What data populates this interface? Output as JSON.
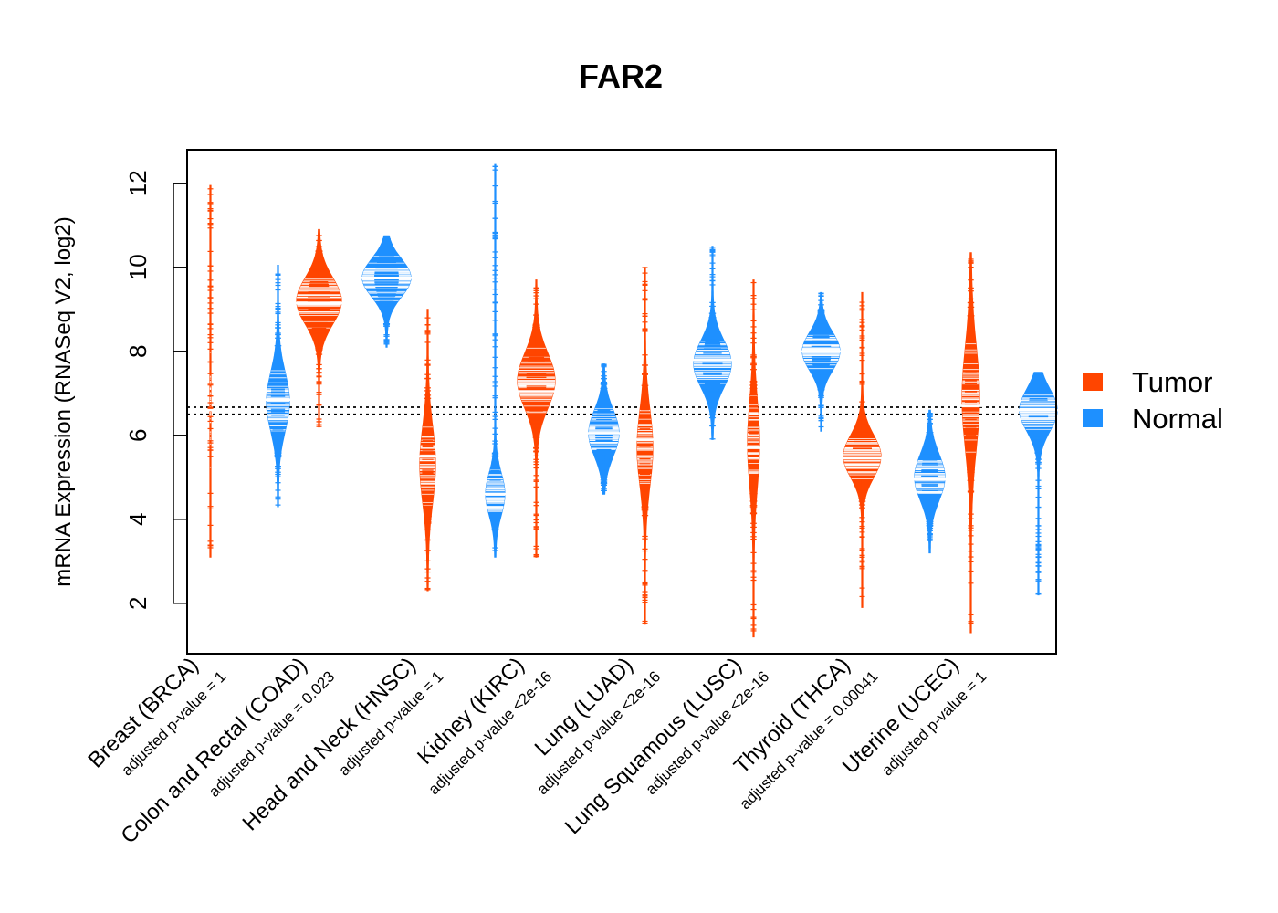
{
  "chart_data": {
    "type": "beanplot",
    "title": "FAR2",
    "ylabel": "mRNA Expression (RNASeq V2, log2)",
    "xlabel": "",
    "ylim": [
      0.8,
      12.8
    ],
    "yticks": [
      2,
      4,
      6,
      8,
      10,
      12
    ],
    "reference_lines": [
      6.5,
      6.67
    ],
    "legend": {
      "position": "right",
      "entries": [
        {
          "name": "Tumor",
          "color": "#FF4500"
        },
        {
          "name": "Normal",
          "color": "#1E90FF"
        }
      ]
    },
    "categories": [
      {
        "name": "Breast (BRCA)",
        "pvalue": "adjusted p-value = 1",
        "tumor": {
          "min": 3.1,
          "max": 11.95,
          "median": 6.6,
          "peak": 6.7,
          "spread": 1.2,
          "width": 0
        },
        "normal": {
          "min": 4.3,
          "max": 10.05,
          "median": 6.85,
          "peak": 6.8,
          "spread": 0.7,
          "width": 12
        }
      },
      {
        "name": "Colon and Rectal (COAD)",
        "pvalue": "adjusted p-value = 0.023",
        "tumor": {
          "min": 6.2,
          "max": 10.9,
          "median": 9.15,
          "peak": 9.2,
          "spread": 0.55,
          "width": 24
        },
        "normal": {
          "min": 8.1,
          "max": 10.75,
          "median": 9.75,
          "peak": 9.75,
          "spread": 0.45,
          "width": 26
        }
      },
      {
        "name": "Head and Neck (HNSC)",
        "pvalue": "adjusted p-value = 1",
        "tumor": {
          "min": 2.3,
          "max": 9.0,
          "median": 5.5,
          "peak": 5.3,
          "spread": 0.9,
          "width": 8
        },
        "normal": {
          "min": 3.1,
          "max": 12.45,
          "median": 4.6,
          "peak": 4.6,
          "spread": 0.5,
          "width": 10
        }
      },
      {
        "name": "Kidney (KIRC)",
        "pvalue": "adjusted p-value <2e-16",
        "tumor": {
          "min": 3.1,
          "max": 9.7,
          "median": 7.05,
          "peak": 7.3,
          "spread": 0.65,
          "width": 20
        },
        "normal": {
          "min": 4.6,
          "max": 7.7,
          "median": 6.05,
          "peak": 6.05,
          "spread": 0.55,
          "width": 16
        }
      },
      {
        "name": "Lung (LUAD)",
        "pvalue": "adjusted p-value <2e-16",
        "tumor": {
          "min": 1.5,
          "max": 10.0,
          "median": 5.9,
          "peak": 5.7,
          "spread": 0.9,
          "width": 8
        },
        "normal": {
          "min": 5.9,
          "max": 10.5,
          "median": 7.8,
          "peak": 7.7,
          "spread": 0.55,
          "width": 20
        }
      },
      {
        "name": "Lung Squamous (LUSC)",
        "pvalue": "adjusted p-value <2e-16",
        "tumor": {
          "min": 1.2,
          "max": 9.7,
          "median": 5.7,
          "peak": 5.8,
          "spread": 1.0,
          "width": 6
        },
        "normal": {
          "min": 6.1,
          "max": 9.4,
          "median": 8.0,
          "peak": 8.0,
          "spread": 0.45,
          "width": 20
        }
      },
      {
        "name": "Thyroid (THCA)",
        "pvalue": "adjusted p-value = 0.00041",
        "tumor": {
          "min": 1.9,
          "max": 9.4,
          "median": 5.45,
          "peak": 5.5,
          "spread": 0.5,
          "width": 20
        },
        "normal": {
          "min": 3.2,
          "max": 6.6,
          "median": 4.95,
          "peak": 5.0,
          "spread": 0.55,
          "width": 16
        }
      },
      {
        "name": "Uterine (UCEC)",
        "pvalue": "adjusted p-value = 1",
        "tumor": {
          "min": 1.3,
          "max": 10.35,
          "median": 6.7,
          "peak": 6.9,
          "spread": 1.2,
          "width": 9
        },
        "normal": {
          "min": 2.2,
          "max": 7.5,
          "median": 6.6,
          "peak": 6.6,
          "spread": 0.5,
          "width": 20
        }
      }
    ]
  }
}
